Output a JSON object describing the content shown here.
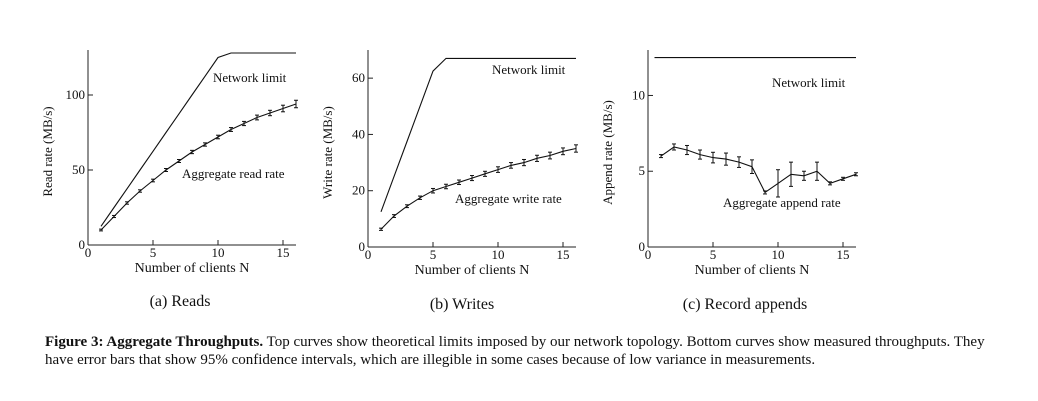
{
  "figure": {
    "caption_label": "Figure 3: Aggregate Throughputs.",
    "caption_text": "Top curves show theoretical limits imposed by our network topology. Bottom curves show measured throughputs. They have error bars that show 95% confidence intervals, which are illegible in some cases because of low variance in measurements."
  },
  "chart_data": [
    {
      "type": "line",
      "subcaption": "(a) Reads",
      "xlabel": "Number of clients N",
      "ylabel": "Read rate (MB/s)",
      "xlim": [
        0,
        16
      ],
      "ylim": [
        0,
        130
      ],
      "xticks": [
        0,
        5,
        10,
        15
      ],
      "yticks": [
        0,
        50,
        100
      ],
      "grid": false,
      "series": [
        {
          "name": "Network limit",
          "x": [
            1,
            2,
            3,
            4,
            5,
            6,
            7,
            8,
            9,
            10,
            11,
            12,
            13,
            14,
            15,
            16
          ],
          "y": [
            12.5,
            25,
            37.5,
            50,
            62.5,
            75,
            87.5,
            100,
            112.5,
            125,
            128,
            128,
            128,
            128,
            128,
            128
          ],
          "error": null
        },
        {
          "name": "Aggregate read rate",
          "x": [
            1,
            2,
            3,
            4,
            5,
            6,
            7,
            8,
            9,
            10,
            11,
            12,
            13,
            14,
            15,
            16
          ],
          "y": [
            10,
            19,
            28,
            36,
            43,
            50,
            56,
            62,
            67,
            72,
            77,
            81,
            85,
            88,
            91,
            94
          ],
          "error": [
            0.6,
            0.7,
            0.8,
            0.8,
            0.9,
            1,
            1,
            1.1,
            1.1,
            1.2,
            1.3,
            1.4,
            1.6,
            1.8,
            2.2,
            2.5
          ]
        }
      ]
    },
    {
      "type": "line",
      "subcaption": "(b) Writes",
      "xlabel": "Number of clients N",
      "ylabel": "Write rate (MB/s)",
      "xlim": [
        0,
        16
      ],
      "ylim": [
        0,
        70
      ],
      "xticks": [
        0,
        5,
        10,
        15
      ],
      "yticks": [
        0,
        20,
        40,
        60
      ],
      "grid": false,
      "series": [
        {
          "name": "Network limit",
          "x": [
            1,
            2,
            3,
            4,
            5,
            6,
            7,
            8,
            9,
            10,
            11,
            12,
            13,
            14,
            15,
            16
          ],
          "y": [
            12.5,
            25,
            37.5,
            50,
            62.5,
            67,
            67,
            67,
            67,
            67,
            67,
            67,
            67,
            67,
            67,
            67
          ],
          "error": null
        },
        {
          "name": "Aggregate write rate",
          "x": [
            1,
            2,
            3,
            4,
            5,
            6,
            7,
            8,
            9,
            10,
            11,
            12,
            13,
            14,
            15,
            16
          ],
          "y": [
            6.3,
            11,
            14.5,
            17.5,
            20,
            21.5,
            23,
            24.5,
            26,
            27.5,
            29,
            30,
            31.5,
            32.5,
            34,
            35
          ],
          "error": [
            0.4,
            0.5,
            0.5,
            0.6,
            0.8,
            0.8,
            0.8,
            0.9,
            0.9,
            1,
            1,
            1.1,
            1.1,
            1.2,
            1.2,
            1.3
          ]
        }
      ]
    },
    {
      "type": "line",
      "subcaption": "(c) Record appends",
      "xlabel": "Number of clients N",
      "ylabel": "Append rate (MB/s)",
      "xlim": [
        0,
        16
      ],
      "ylim": [
        0,
        13
      ],
      "xticks": [
        0,
        5,
        10,
        15
      ],
      "yticks": [
        0,
        5,
        10
      ],
      "grid": false,
      "series": [
        {
          "name": "Network limit",
          "x": [
            0.5,
            16
          ],
          "y": [
            12.5,
            12.5
          ],
          "error": null
        },
        {
          "name": "Aggregate append rate",
          "x": [
            1,
            2,
            3,
            4,
            5,
            6,
            7,
            8,
            9,
            10,
            11,
            12,
            13,
            14,
            15,
            16
          ],
          "y": [
            6,
            6.6,
            6.4,
            6.1,
            5.9,
            5.8,
            5.6,
            5.3,
            3.6,
            4.2,
            4.8,
            4.7,
            5,
            4.2,
            4.5,
            4.8
          ],
          "error": [
            0.1,
            0.2,
            0.3,
            0.3,
            0.35,
            0.4,
            0.35,
            0.45,
            0.1,
            0.9,
            0.8,
            0.3,
            0.6,
            0.1,
            0.1,
            0.1
          ]
        }
      ]
    }
  ]
}
